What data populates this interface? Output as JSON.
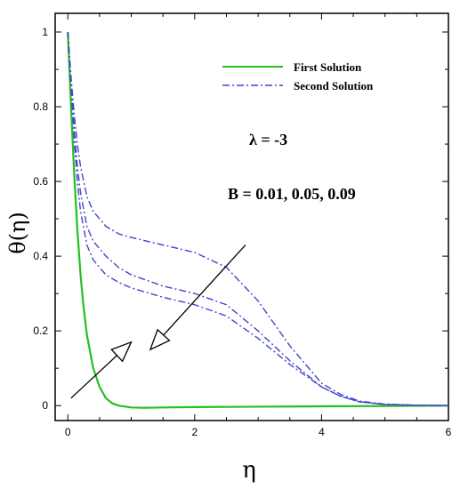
{
  "chart_data": {
    "type": "line",
    "xlabel": "η",
    "ylabel": "θ(η)",
    "xlim": [
      -0.2,
      6
    ],
    "ylim": [
      -0.04,
      1.05
    ],
    "xticks": [
      "0",
      "2",
      "4",
      "6"
    ],
    "yticks": [
      "0",
      "0.2",
      "0.4",
      "0.6",
      "0.8",
      "1"
    ],
    "grid": false,
    "legend_position": "top-right",
    "series": [
      {
        "name": "First Solution",
        "style": "solid",
        "color": "#22c022",
        "x": [
          0,
          0.05,
          0.1,
          0.15,
          0.2,
          0.25,
          0.3,
          0.4,
          0.5,
          0.6,
          0.7,
          0.8,
          1.0,
          1.2,
          1.5,
          2.0,
          3.0,
          4.0,
          5.0,
          6.0
        ],
        "y": [
          1.0,
          0.8,
          0.62,
          0.47,
          0.35,
          0.26,
          0.19,
          0.1,
          0.05,
          0.02,
          0.006,
          0.0,
          -0.005,
          -0.006,
          -0.005,
          -0.004,
          -0.003,
          -0.002,
          -0.001,
          0.0
        ]
      },
      {
        "name": "Second Solution",
        "style": "dashdot",
        "color": "#4444cc",
        "x": [
          0,
          0.05,
          0.1,
          0.15,
          0.2,
          0.3,
          0.4,
          0.6,
          0.8,
          1.0,
          1.5,
          2.0,
          2.5,
          3.0,
          3.5,
          4.0,
          4.3,
          4.6,
          5.0,
          5.5,
          6.0
        ],
        "y": [
          1.0,
          0.85,
          0.71,
          0.6,
          0.52,
          0.43,
          0.39,
          0.35,
          0.33,
          0.315,
          0.29,
          0.27,
          0.24,
          0.18,
          0.11,
          0.05,
          0.025,
          0.01,
          0.003,
          0.001,
          0.0
        ]
      },
      {
        "name": "Second Solution",
        "style": "dashdot",
        "color": "#4444cc",
        "x": [
          0,
          0.05,
          0.1,
          0.15,
          0.2,
          0.3,
          0.4,
          0.6,
          0.8,
          1.0,
          1.5,
          2.0,
          2.5,
          3.0,
          3.5,
          4.0,
          4.3,
          4.6,
          5.0,
          5.5,
          6.0
        ],
        "y": [
          1.0,
          0.86,
          0.74,
          0.64,
          0.57,
          0.48,
          0.44,
          0.4,
          0.37,
          0.35,
          0.32,
          0.3,
          0.27,
          0.2,
          0.12,
          0.05,
          0.025,
          0.01,
          0.003,
          0.001,
          0.0
        ]
      },
      {
        "name": "Second Solution",
        "style": "dashdot",
        "color": "#4444cc",
        "x": [
          0,
          0.05,
          0.1,
          0.15,
          0.2,
          0.3,
          0.4,
          0.6,
          0.8,
          1.0,
          1.5,
          2.0,
          2.5,
          3.0,
          3.5,
          4.0,
          4.3,
          4.6,
          5.0,
          5.5,
          6.0
        ],
        "y": [
          1.0,
          0.88,
          0.78,
          0.7,
          0.64,
          0.56,
          0.52,
          0.48,
          0.46,
          0.45,
          0.43,
          0.41,
          0.37,
          0.28,
          0.16,
          0.06,
          0.03,
          0.012,
          0.004,
          0.001,
          0.0
        ]
      }
    ],
    "legend": {
      "first_label": "First Solution",
      "second_label": "Second Solution"
    },
    "annotations": {
      "lambda_text": "λ = -3",
      "b_text": "B = 0.01, 0.05, 0.09"
    },
    "arrows": [
      {
        "from": [
          0.05,
          0.02
        ],
        "to": [
          1.0,
          0.17
        ]
      },
      {
        "from": [
          2.8,
          0.43
        ],
        "to": [
          1.3,
          0.15
        ]
      }
    ]
  }
}
